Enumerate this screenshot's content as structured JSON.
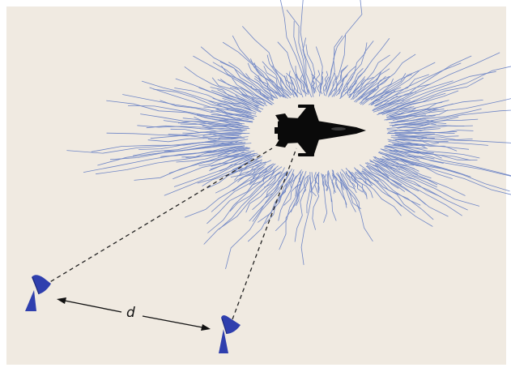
{
  "figure": {
    "distance_label": "d",
    "colors": {
      "background": "#f0eae1",
      "border": "#ffffff",
      "scatter": "#6f86c6",
      "aircraft": "#0a0a0a",
      "antenna": "#2f3fae",
      "line": "#222222"
    },
    "icons": {
      "aircraft": "fighter-jet-icon",
      "left_receiver": "radar-dish-icon",
      "right_receiver": "radar-dish-icon"
    }
  }
}
